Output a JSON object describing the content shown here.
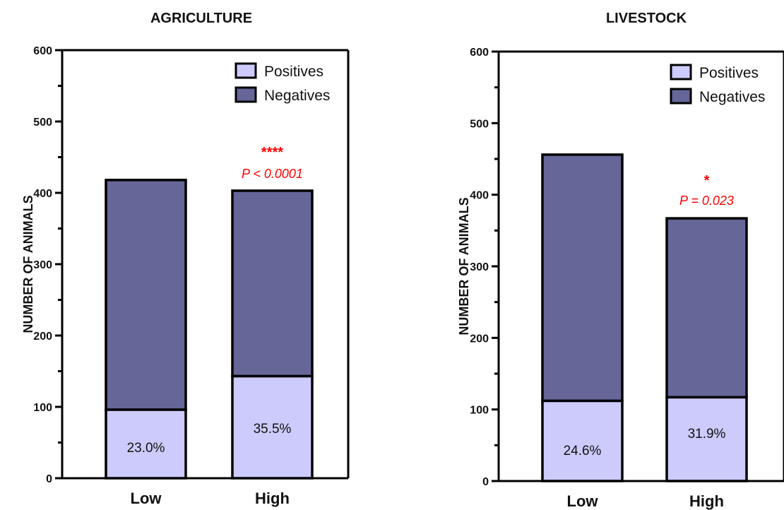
{
  "chart_data": [
    {
      "type": "bar",
      "stacked": true,
      "title": "AGRICULTURE",
      "ylabel": "NUMBER OF ANIMALS",
      "xlabel": "",
      "ylim": [
        0,
        600
      ],
      "yticks": [
        "0",
        "100",
        "200",
        "300",
        "400",
        "500",
        "600"
      ],
      "categories": [
        "Low",
        "High"
      ],
      "series": [
        {
          "name": "Positives",
          "values": [
            96,
            143
          ]
        },
        {
          "name": "Negatives",
          "values": [
            322,
            260
          ]
        }
      ],
      "totals": [
        418,
        403
      ],
      "data_labels": [
        "23.0%",
        "35.5%"
      ],
      "annotation": {
        "category": "High",
        "stars": "****",
        "pvalue": "P < 0.0001"
      },
      "legend": "top-right"
    },
    {
      "type": "bar",
      "stacked": true,
      "title": "LIVESTOCK",
      "ylabel": "NUMBER OF ANIMALS",
      "xlabel": "",
      "ylim": [
        0,
        600
      ],
      "yticks": [
        "0",
        "100",
        "200",
        "300",
        "400",
        "500",
        "600"
      ],
      "categories": [
        "Low",
        "High"
      ],
      "series": [
        {
          "name": "Positives",
          "values": [
            112,
            117
          ]
        },
        {
          "name": "Negatives",
          "values": [
            344,
            250
          ]
        }
      ],
      "totals": [
        456,
        367
      ],
      "data_labels": [
        "24.6%",
        "31.9%"
      ],
      "annotation": {
        "category": "High",
        "stars": "*",
        "pvalue": "P = 0.023"
      },
      "legend": "top-right"
    }
  ],
  "colors": {
    "positives": "#cccbfb",
    "negatives": "#666699",
    "outline": "#000000",
    "significance": "#ff0000"
  }
}
